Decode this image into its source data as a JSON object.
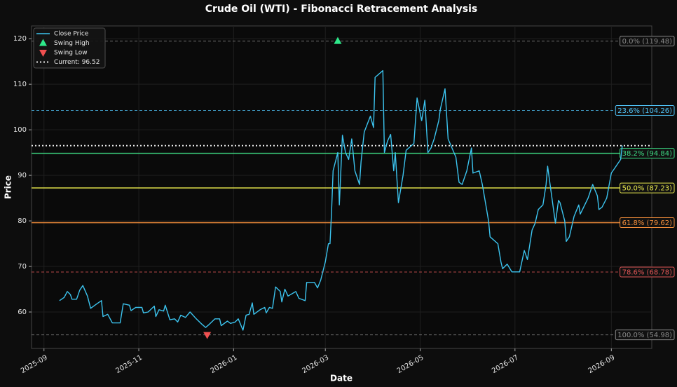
{
  "chart_data": {
    "type": "line",
    "title": "Crude Oil (WTI) - Fibonacci Retracement Analysis",
    "x_label": "Date",
    "y_label": "Price",
    "xlim": [
      "2025-08-24",
      "2026-09-27"
    ],
    "ylim": [
      52,
      122.8
    ],
    "xticks": [
      {
        "value": "2025-09-01",
        "label": "2025-09"
      },
      {
        "value": "2025-11-01",
        "label": "2025-11"
      },
      {
        "value": "2026-01-01",
        "label": "2026-01"
      },
      {
        "value": "2026-03-01",
        "label": "2026-03"
      },
      {
        "value": "2026-05-01",
        "label": "2026-05"
      },
      {
        "value": "2026-07-01",
        "label": "2026-07"
      },
      {
        "value": "2026-09-01",
        "label": "2026-09"
      }
    ],
    "yticks": [
      60,
      70,
      80,
      90,
      100,
      110,
      120
    ],
    "grid": true,
    "legend": "upper left",
    "x": [
      "2025-09-11",
      "2025-09-14",
      "2025-09-16",
      "2025-09-18",
      "2025-09-19",
      "2025-09-22",
      "2025-09-24",
      "2025-09-26",
      "2025-09-29",
      "2025-10-01",
      "2025-10-05",
      "2025-10-08",
      "2025-10-09",
      "2025-10-12",
      "2025-10-15",
      "2025-10-20",
      "2025-10-22",
      "2025-10-26",
      "2025-10-27",
      "2025-10-30",
      "2025-11-03",
      "2025-11-04",
      "2025-11-07",
      "2025-11-11",
      "2025-11-12",
      "2025-11-14",
      "2025-11-17",
      "2025-11-18",
      "2025-11-21",
      "2025-11-24",
      "2025-11-26",
      "2025-11-28",
      "2025-12-01",
      "2025-12-04",
      "2025-12-08",
      "2025-12-11",
      "2025-12-14",
      "2025-12-16",
      "2025-12-20",
      "2025-12-23",
      "2025-12-24",
      "2025-12-28",
      "2025-12-30",
      "2026-01-02",
      "2026-01-04",
      "2026-01-07",
      "2026-01-09",
      "2026-01-11",
      "2026-01-13",
      "2026-01-14",
      "2026-01-18",
      "2026-01-21",
      "2026-01-22",
      "2026-01-24",
      "2026-01-26",
      "2026-01-28",
      "2026-01-31",
      "2026-02-01",
      "2026-02-03",
      "2026-02-05",
      "2026-02-09",
      "2026-02-10",
      "2026-02-12",
      "2026-02-16",
      "2026-02-17",
      "2026-02-22",
      "2026-02-24",
      "2026-02-26",
      "2026-03-01",
      "2026-03-03",
      "2026-03-04",
      "2026-03-05",
      "2026-03-06",
      "2026-03-09",
      "2026-03-10",
      "2026-03-12",
      "2026-03-14",
      "2026-03-16",
      "2026-03-18",
      "2026-03-20",
      "2026-03-23",
      "2026-03-24",
      "2026-03-26",
      "2026-03-30",
      "2026-04-01",
      "2026-04-02",
      "2026-04-07",
      "2026-04-08",
      "2026-04-10",
      "2026-04-12",
      "2026-04-14",
      "2026-04-15",
      "2026-04-17",
      "2026-04-20",
      "2026-04-22",
      "2026-04-27",
      "2026-04-29",
      "2026-05-02",
      "2026-05-04",
      "2026-05-06",
      "2026-05-08",
      "2026-05-10",
      "2026-05-13",
      "2026-05-14",
      "2026-05-17",
      "2026-05-19",
      "2026-05-24",
      "2026-05-26",
      "2026-05-28",
      "2026-05-31",
      "2026-06-03",
      "2026-06-04",
      "2026-06-08",
      "2026-06-10",
      "2026-06-12",
      "2026-06-14",
      "2026-06-15",
      "2026-06-20",
      "2026-06-22",
      "2026-06-23",
      "2026-06-26",
      "2026-06-29",
      "2026-07-04",
      "2026-07-07",
      "2026-07-09",
      "2026-07-12",
      "2026-07-14",
      "2026-07-16",
      "2026-07-19",
      "2026-07-21",
      "2026-07-22",
      "2026-07-24",
      "2026-07-27",
      "2026-07-29",
      "2026-07-30",
      "2026-08-02",
      "2026-08-03",
      "2026-08-05",
      "2026-08-08",
      "2026-08-11",
      "2026-08-12",
      "2026-08-17",
      "2026-08-20",
      "2026-08-23",
      "2026-08-24",
      "2026-08-26",
      "2026-08-29",
      "2026-09-01",
      "2026-09-04",
      "2026-09-07",
      "2026-09-08"
    ],
    "series": [
      {
        "name": "Close Price",
        "color": "#3cc4ef",
        "values": [
          62.5,
          63.2,
          64.5,
          63.8,
          62.8,
          62.8,
          64.8,
          65.8,
          63.5,
          60.8,
          61.8,
          62.5,
          59,
          59.5,
          57.6,
          57.6,
          61.8,
          61.5,
          60.3,
          61,
          61,
          59.8,
          60,
          61.3,
          59,
          60.5,
          60.2,
          61.5,
          58.3,
          58.5,
          57.8,
          59.3,
          58.8,
          60,
          58.5,
          57.5,
          56.6,
          57.2,
          58.5,
          58.5,
          57,
          58,
          57.5,
          57.8,
          58.5,
          56,
          59.3,
          59.5,
          62,
          59.5,
          60.5,
          61,
          59.8,
          61,
          60.8,
          65.5,
          64.5,
          62.2,
          65,
          63.5,
          64.3,
          64.5,
          63,
          62.5,
          66.5,
          66.5,
          65.3,
          67,
          71,
          75,
          75,
          82,
          91,
          95,
          83.5,
          98.8,
          95,
          93.5,
          98,
          91,
          88,
          93,
          99.5,
          103,
          100.5,
          111.5,
          113,
          95,
          97.5,
          99,
          91,
          95,
          84,
          90,
          95.5,
          97,
          107,
          102,
          106.5,
          95,
          96,
          98,
          102,
          104.5,
          109,
          98,
          94,
          88.5,
          88,
          91,
          96,
          90.5,
          91,
          88,
          84,
          80,
          76.5,
          75,
          71,
          69.5,
          70.5,
          68.8,
          68.8,
          73.5,
          71.5,
          78,
          79.5,
          82.5,
          83.5,
          88,
          92,
          87,
          79.5,
          84.5,
          84,
          80,
          75.5,
          76.5,
          81,
          83.5,
          81.5,
          85,
          88,
          85.5,
          82.5,
          83,
          85,
          90.5,
          92,
          93.5,
          96.52
        ]
      }
    ],
    "swing_high": {
      "name": "Swing High",
      "x": "2026-03-09",
      "value": 119.48,
      "color": "#2ee88a"
    },
    "swing_low": {
      "name": "Swing Low",
      "x": "2025-12-15",
      "value": 54.98,
      "color": "#f05050"
    },
    "current": {
      "label": "Current: 96.52",
      "value": 96.52,
      "color": "#e8e8e8"
    },
    "fib_levels": [
      {
        "label": "0.0% (119.48)",
        "value": 119.48,
        "color": "#8a8a8a",
        "style": "dashed"
      },
      {
        "label": "23.6% (104.26)",
        "value": 104.26,
        "color": "#4fc3f7",
        "style": "dashed"
      },
      {
        "label": "38.2% (94.84)",
        "value": 94.84,
        "color": "#3ddc84",
        "style": "solid"
      },
      {
        "label": "50.0% (87.23)",
        "value": 87.23,
        "color": "#e6e64d",
        "style": "solid"
      },
      {
        "label": "61.8% (79.62)",
        "value": 79.62,
        "color": "#f08c3a",
        "style": "solid"
      },
      {
        "label": "78.6% (68.78)",
        "value": 68.78,
        "color": "#e05555",
        "style": "dashed"
      },
      {
        "label": "100.0% (54.98)",
        "value": 54.98,
        "color": "#8a8a8a",
        "style": "dashed"
      }
    ]
  }
}
